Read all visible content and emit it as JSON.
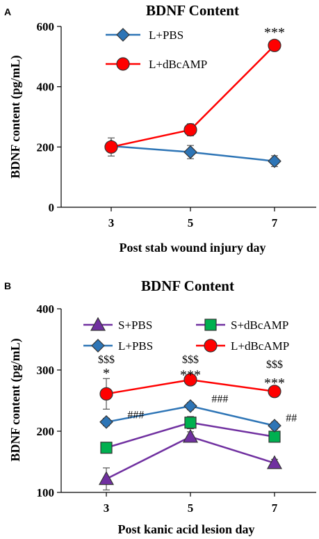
{
  "chart_data": [
    {
      "type": "line",
      "panel_label": "A",
      "title": "BDNF Content",
      "xlabel": "Post stab wound injury day",
      "ylabel": "BDNF content (pg/mL)",
      "x": [
        3,
        5,
        7
      ],
      "x_ticks": [
        "3",
        "5",
        "7"
      ],
      "ylim": [
        0,
        600
      ],
      "y_ticks": [
        "0",
        "200",
        "400",
        "600"
      ],
      "grid": false,
      "legend_position": "top-left",
      "series": [
        {
          "name": "L+PBS",
          "values": [
            203,
            183,
            153
          ],
          "errors": [
            12,
            22,
            18
          ],
          "color": "#2e75b6",
          "marker_color": "#2e75b6",
          "marker": "diamond"
        },
        {
          "name": "L+dBcAMP",
          "values": [
            200,
            257,
            537
          ],
          "errors": [
            30,
            20,
            10
          ],
          "color": "#ff0000",
          "marker_color": "#ff0000",
          "marker": "circle"
        }
      ],
      "annotations": [
        {
          "series": "L+dBcAMP",
          "x_index": 2,
          "text": "***"
        }
      ]
    },
    {
      "type": "line",
      "panel_label": "B",
      "title": "BDNF Content",
      "xlabel": "Post kanic acid lesion day",
      "ylabel": "BDNF content (pg/mL)",
      "x": [
        3,
        5,
        7
      ],
      "x_ticks": [
        "3",
        "5",
        "7"
      ],
      "ylim": [
        100,
        400
      ],
      "y_ticks": [
        "100",
        "200",
        "300",
        "400"
      ],
      "grid": false,
      "legend_position": "top",
      "series": [
        {
          "name": "S+PBS",
          "values": [
            122,
            191,
            148
          ],
          "errors": [
            18,
            8,
            6
          ],
          "color": "#7030a0",
          "marker_color": "#7030a0",
          "marker": "triangle"
        },
        {
          "name": "S+dBcAMP",
          "values": [
            173,
            214,
            191
          ],
          "errors": [
            8,
            10,
            6
          ],
          "color": "#7030a0",
          "marker_color": "#00b050",
          "marker": "square"
        },
        {
          "name": "L+PBS",
          "values": [
            215,
            241,
            209
          ],
          "errors": [
            6,
            6,
            6
          ],
          "color": "#2e75b6",
          "marker_color": "#2e75b6",
          "marker": "diamond"
        },
        {
          "name": "L+dBcAMP",
          "values": [
            261,
            284,
            265
          ],
          "errors": [
            25,
            6,
            6
          ],
          "color": "#ff0000",
          "marker_color": "#ff0000",
          "marker": "circle"
        }
      ],
      "annotations": [
        {
          "x_index": 0,
          "y": 318,
          "text": "$$$"
        },
        {
          "x_index": 0,
          "y": 299,
          "text": "*"
        },
        {
          "x_index": 1,
          "y": 318,
          "text": "$$$"
        },
        {
          "x_index": 1,
          "y": 296,
          "text": "***"
        },
        {
          "x_index": 2,
          "y": 310,
          "text": "$$$"
        },
        {
          "x_index": 2,
          "y": 283,
          "text": "***"
        },
        {
          "x_index": 0,
          "y": 228,
          "dx": 0.35,
          "text": "###"
        },
        {
          "x_index": 1,
          "y": 254,
          "dx": 0.35,
          "text": "###"
        },
        {
          "x_index": 2,
          "y": 223,
          "dx": 0.2,
          "text": "##"
        }
      ]
    }
  ]
}
